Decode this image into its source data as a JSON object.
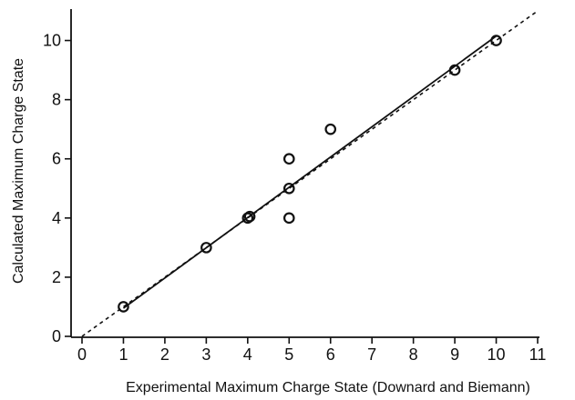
{
  "chart_data": {
    "type": "scatter",
    "title": "",
    "xlabel": "Experimental Maximum Charge State (Downard and Biemann)",
    "ylabel": "Calculated Maximum Charge State",
    "xlim": [
      0,
      11
    ],
    "ylim": [
      0,
      11
    ],
    "xticks": [
      0,
      1,
      2,
      3,
      4,
      5,
      6,
      7,
      8,
      9,
      10,
      11
    ],
    "yticks": [
      0,
      2,
      4,
      6,
      8,
      10
    ],
    "grid": false,
    "series": [
      {
        "kind": "points",
        "marker": "open-circle",
        "points": [
          [
            1,
            1
          ],
          [
            3,
            3
          ],
          [
            4,
            4
          ],
          [
            4.05,
            4.05
          ],
          [
            5,
            4
          ],
          [
            5,
            5
          ],
          [
            5,
            6
          ],
          [
            6,
            7
          ],
          [
            9,
            9
          ],
          [
            10,
            10
          ]
        ]
      },
      {
        "kind": "fit-line",
        "style": "solid",
        "x": [
          1,
          10
        ],
        "y": [
          0.95,
          10.15
        ]
      },
      {
        "kind": "identity-line",
        "style": "dashed",
        "x": [
          0,
          11
        ],
        "y": [
          0,
          11
        ]
      }
    ]
  }
}
